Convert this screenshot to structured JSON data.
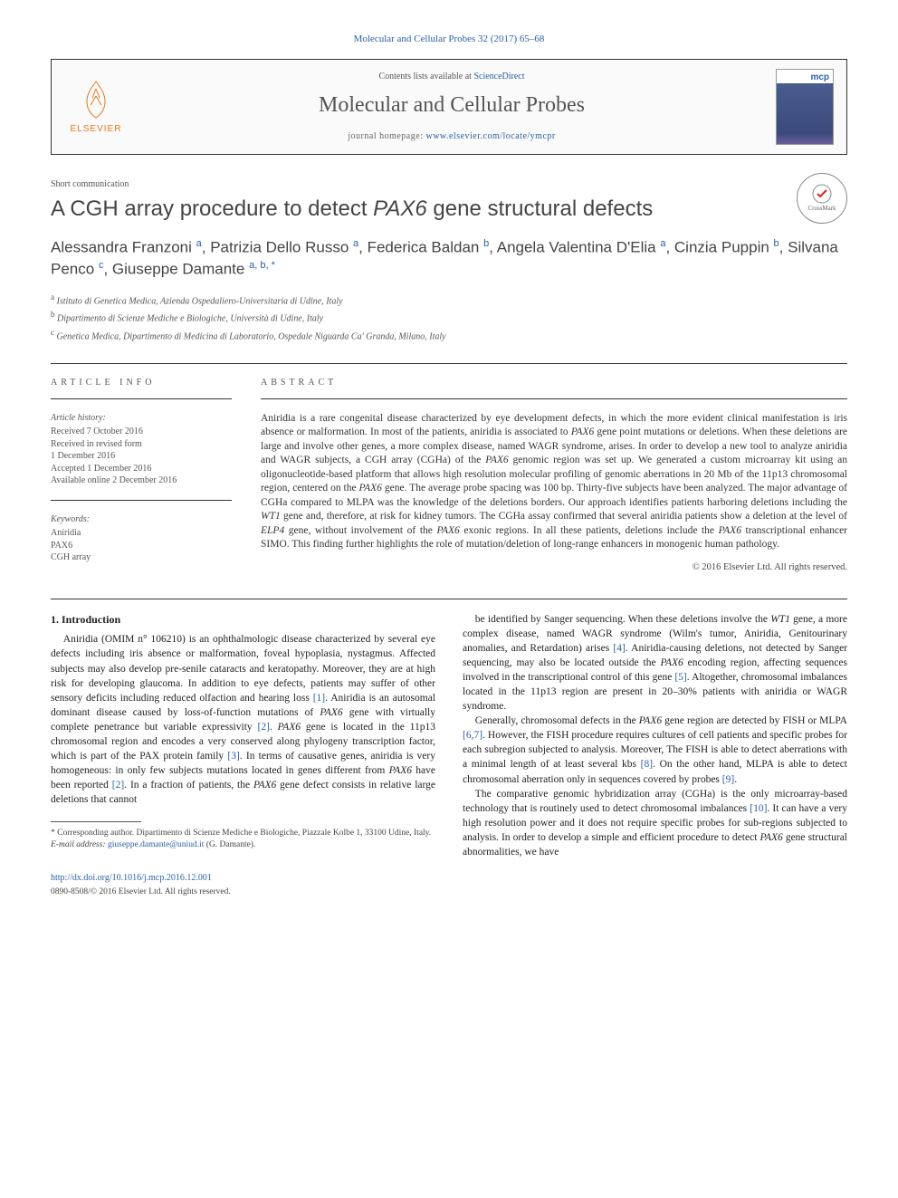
{
  "journal_ref": "Molecular and Cellular Probes 32 (2017) 65–68",
  "header": {
    "contents_prefix": "Contents lists available at ",
    "contents_link": "ScienceDirect",
    "journal_title": "Molecular and Cellular Probes",
    "homepage_prefix": "journal homepage: ",
    "homepage_url": "www.elsevier.com/locate/ymcpr",
    "elsevier_label": "ELSEVIER"
  },
  "article_type": "Short communication",
  "title_html": "A CGH array procedure to detect <em>PAX6</em> gene structural defects",
  "crossmark_label": "CrossMark",
  "authors_html": "Alessandra Franzoni <sup>a</sup>, Patrizia Dello Russo <sup>a</sup>, Federica Baldan <sup>b</sup>, Angela Valentina D'Elia <sup>a</sup>, Cinzia Puppin <sup>b</sup>, Silvana Penco <sup>c</sup>, Giuseppe Damante <sup>a, b, <span class=\"corr\">*</span></sup>",
  "affiliations": [
    "<sup>a</sup> Istituto di Genetica Medica, Azienda Ospedaliero-Universitaria di Udine, Italy",
    "<sup>b</sup> Dipartimento di Scienze Mediche e Biologiche, Università di Udine, Italy",
    "<sup>c</sup> Genetica Medica, Dipartimento di Medicina di Laboratorio, Ospedale Niguarda Ca' Granda, Milano, Italy"
  ],
  "info": {
    "heading": "ARTICLE INFO",
    "history_label": "Article history:",
    "history": [
      "Received 7 October 2016",
      "Received in revised form",
      "1 December 2016",
      "Accepted 1 December 2016",
      "Available online 2 December 2016"
    ],
    "keywords_label": "Keywords:",
    "keywords": [
      "Aniridia",
      "PAX6",
      "CGH array"
    ]
  },
  "abstract": {
    "heading": "ABSTRACT",
    "text_html": "Aniridia is a rare congenital disease characterized by eye development defects, in which the more evident clinical manifestation is iris absence or malformation. In most of the patients, aniridia is associated to <em>PAX6</em> gene point mutations or deletions. When these deletions are large and involve other genes, a more complex disease, named WAGR syndrome, arises. In order to develop a new tool to analyze aniridia and WAGR subjects, a CGH array (CGHa) of the <em>PAX6</em> genomic region was set up. We generated a custom microarray kit using an oligonucleotide-based platform that allows high resolution molecular profiling of genomic aberrations in 20 Mb of the 11p13 chromosomal region, centered on the <em>PAX6</em> gene. The average probe spacing was 100 bp. Thirty-five subjects have been analyzed. The major advantage of CGHa compared to MLPA was the knowledge of the deletions borders. Our approach identifies patients harboring deletions including the <em>WT1</em> gene and, therefore, at risk for kidney tumors. The CGHa assay confirmed that several aniridia patients show a deletion at the level of <em>ELP4</em> gene, without involvement of the <em>PAX6</em> exonic regions. In all these patients, deletions include the <em>PAX6</em> transcriptional enhancer SIMO. This finding further highlights the role of mutation/deletion of long-range enhancers in monogenic human pathology.",
    "copyright": "© 2016 Elsevier Ltd. All rights reserved."
  },
  "body": {
    "section_heading": "1. Introduction",
    "p1_html": "Aniridia (OMIM n° 106210) is an ophthalmologic disease characterized by several eye defects including iris absence or malformation, foveal hypoplasia, nystagmus. Affected subjects may also develop pre-senile cataracts and keratopathy. Moreover, they are at high risk for developing glaucoma. In addition to eye defects, patients may suffer of other sensory deficits including reduced olfaction and hearing loss <span class=\"ref\">[1]</span>. Aniridia is an autosomal dominant disease caused by loss-of-function mutations of <em>PAX6</em> gene with virtually complete penetrance but variable expressivity <span class=\"ref\">[2]</span>. <em>PAX6</em> gene is located in the 11p13 chromosomal region and encodes a very conserved along phylogeny transcription factor, which is part of the PAX protein family <span class=\"ref\">[3]</span>. In terms of causative genes, aniridia is very homogeneous: in only few subjects mutations located in genes different from <em>PAX6</em> have been reported <span class=\"ref\">[2]</span>. In a fraction of patients, the <em>PAX6</em> gene defect consists in relative large deletions that cannot",
    "p2_html": "be identified by Sanger sequencing. When these deletions involve the <em>WT1</em> gene, a more complex disease, named WAGR syndrome (Wilm's tumor, Aniridia, Genitourinary anomalies, and Retardation) arises <span class=\"ref\">[4]</span>. Aniridia-causing deletions, not detected by Sanger sequencing, may also be located outside the <em>PAX6</em> encoding region, affecting sequences involved in the transcriptional control of this gene <span class=\"ref\">[5]</span>. Altogether, chromosomal imbalances located in the 11p13 region are present in 20–30% patients with aniridia or WAGR syndrome.",
    "p3_html": "Generally, chromosomal defects in the <em>PAX6</em> gene region are detected by FISH or MLPA <span class=\"ref\">[6,7]</span>. However, the FISH procedure requires cultures of cell patients and specific probes for each subregion subjected to analysis. Moreover, The FISH is able to detect aberrations with a minimal length of at least several kbs <span class=\"ref\">[8]</span>. On the other hand, MLPA is able to detect chromosomal aberration only in sequences covered by probes <span class=\"ref\">[9]</span>.",
    "p4_html": "The comparative genomic hybridization array (CGHa) is the only microarray-based technology that is routinely used to detect chromosomal imbalances <span class=\"ref\">[10]</span>. It can have a very high resolution power and it does not require specific probes for sub-regions subjected to analysis. In order to develop a simple and efficient procedure to detect <em>PAX6</em> gene structural abnormalities, we have"
  },
  "footnote": {
    "corr_html": "* Corresponding author. Dipartimento di Scienze Mediche e Biologiche, Piazzale Kolbe 1, 33100 Udine, Italy.",
    "email_label": "E-mail address:",
    "email": "giuseppe.damante@uniud.it",
    "email_name": "(G. Damante)."
  },
  "doi": "http://dx.doi.org/10.1016/j.mcp.2016.12.001",
  "bottom_copy": "0890-8508/© 2016 Elsevier Ltd. All rights reserved.",
  "colors": {
    "link": "#2a5fa5",
    "orange": "#e67817",
    "text": "#333333"
  }
}
